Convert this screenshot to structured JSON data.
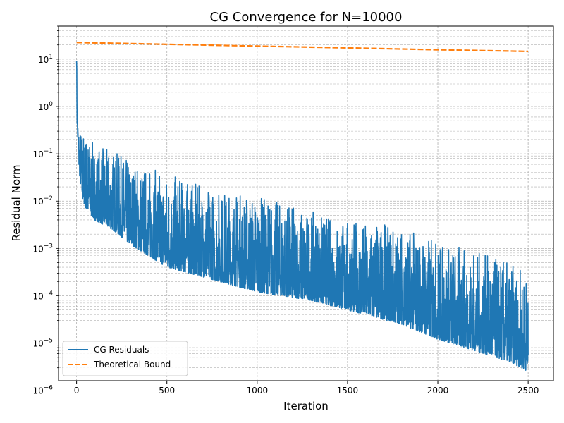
{
  "chart_data": {
    "type": "line",
    "title": "CG Convergence for N=10000",
    "xlabel": "Iteration",
    "ylabel": "Residual Norm",
    "xlim": [
      -100,
      2640
    ],
    "ylim": [
      1.6e-06,
      50
    ],
    "yscale": "log",
    "grid": true,
    "legend_position": "lower-left",
    "x_ticks": [
      0,
      500,
      1000,
      1500,
      2000,
      2500
    ],
    "x_tick_labels": [
      "0",
      "500",
      "1000",
      "1500",
      "2000",
      "2500"
    ],
    "y_ticks": [
      1e-06,
      1e-05,
      0.0001,
      0.001,
      0.01,
      0.1,
      1,
      10
    ],
    "y_tick_labels": [
      {
        "base": "10",
        "exp": "−6"
      },
      {
        "base": "10",
        "exp": "−5"
      },
      {
        "base": "10",
        "exp": "−4"
      },
      {
        "base": "10",
        "exp": "−3"
      },
      {
        "base": "10",
        "exp": "−2"
      },
      {
        "base": "10",
        "exp": "−1"
      },
      {
        "base": "10",
        "exp": "0"
      },
      {
        "base": "10",
        "exp": "1"
      }
    ],
    "series": [
      {
        "name": "CG Residuals",
        "color": "#1f77b4",
        "style": "solid",
        "noisy": true,
        "x": [
          0,
          3,
          8,
          15,
          30,
          50,
          100,
          200,
          300,
          500,
          700,
          1000,
          1300,
          1500,
          1800,
          2000,
          2200,
          2400,
          2500
        ],
        "lower": [
          9.0,
          0.4,
          0.12,
          0.04,
          0.012,
          0.007,
          0.004,
          0.0025,
          0.0012,
          0.0004,
          0.00025,
          0.00012,
          8e-05,
          5e-05,
          2.5e-05,
          1.2e-05,
          7e-06,
          4e-06,
          2.5e-06
        ],
        "upper": [
          11.0,
          3.0,
          0.5,
          0.4,
          0.35,
          0.3,
          0.15,
          0.12,
          0.07,
          0.04,
          0.02,
          0.014,
          0.006,
          0.004,
          0.003,
          0.0015,
          0.0009,
          0.0005,
          0.0003
        ]
      },
      {
        "name": "Theoretical Bound",
        "color": "#ff7f0e",
        "style": "dashed",
        "x": [
          0,
          500,
          1000,
          1500,
          2000,
          2500
        ],
        "y": [
          22.5,
          20.6,
          18.9,
          17.3,
          15.8,
          14.6
        ]
      }
    ]
  }
}
